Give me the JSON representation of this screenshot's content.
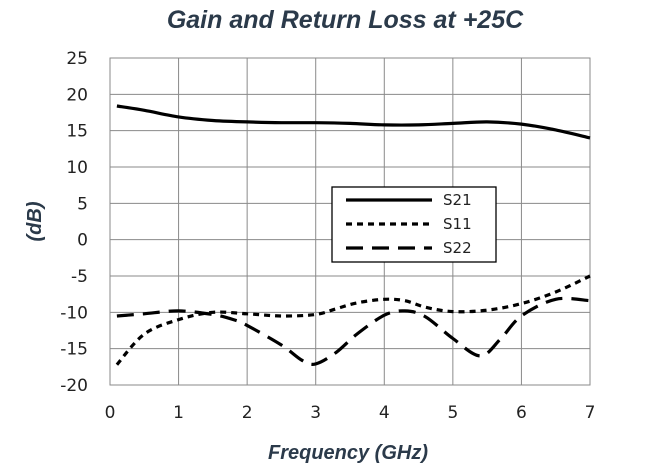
{
  "chart_data": {
    "type": "line",
    "title": "Gain and Return Loss at +25C",
    "xlabel": "Frequency (GHz)",
    "ylabel": "(dB)",
    "xlim": [
      0,
      7
    ],
    "ylim": [
      -20,
      25
    ],
    "xticks": [
      0,
      1,
      2,
      3,
      4,
      5,
      6,
      7
    ],
    "yticks": [
      25,
      20,
      15,
      10,
      5,
      0,
      -5,
      -10,
      -15,
      -20
    ],
    "grid": true,
    "legend_position": "center-right",
    "series": [
      {
        "name": "S21",
        "dash": "solid",
        "x": [
          0.1,
          0.5,
          1.0,
          1.5,
          2.0,
          2.5,
          3.0,
          3.5,
          4.0,
          4.5,
          5.0,
          5.5,
          6.0,
          6.5,
          7.0
        ],
        "y": [
          18.4,
          17.8,
          16.9,
          16.4,
          16.2,
          16.1,
          16.1,
          16.0,
          15.8,
          15.8,
          16.0,
          16.2,
          15.9,
          15.1,
          14.0
        ]
      },
      {
        "name": "S11",
        "dash": "short",
        "x": [
          0.1,
          0.5,
          1.0,
          1.5,
          2.0,
          2.5,
          3.0,
          3.3,
          3.6,
          4.0,
          4.3,
          4.6,
          5.0,
          5.5,
          6.0,
          6.5,
          7.0
        ],
        "y": [
          -17.2,
          -13.0,
          -11.0,
          -10.0,
          -10.2,
          -10.5,
          -10.3,
          -9.5,
          -8.7,
          -8.2,
          -8.4,
          -9.3,
          -9.9,
          -9.7,
          -8.8,
          -7.2,
          -5.0
        ]
      },
      {
        "name": "S22",
        "dash": "long",
        "x": [
          0.1,
          0.5,
          1.0,
          1.5,
          1.8,
          2.0,
          2.5,
          2.8,
          3.0,
          3.3,
          3.6,
          4.0,
          4.3,
          4.6,
          5.0,
          5.4,
          5.7,
          6.0,
          6.5,
          7.0
        ],
        "y": [
          -10.5,
          -10.2,
          -9.8,
          -10.3,
          -11.0,
          -11.8,
          -14.5,
          -16.6,
          -17.1,
          -15.5,
          -13.0,
          -10.4,
          -9.8,
          -10.6,
          -13.6,
          -16.0,
          -13.6,
          -10.5,
          -8.2,
          -8.4
        ]
      }
    ]
  }
}
